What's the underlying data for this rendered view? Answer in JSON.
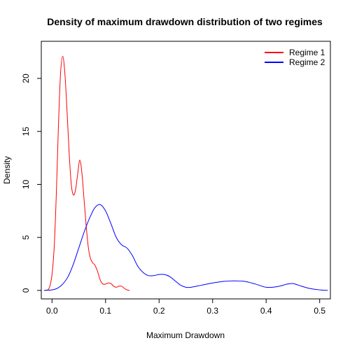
{
  "chart_data": {
    "type": "line",
    "title": "Density of maximum drawdown distribution of two regimes",
    "xlabel": "Maximum Drawdown",
    "ylabel": "Density",
    "xlim": [
      -0.02,
      0.52
    ],
    "ylim": [
      -0.8,
      23.5
    ],
    "xticks": [
      "0.0",
      "0.1",
      "0.2",
      "0.3",
      "0.4",
      "0.5"
    ],
    "xtick_values": [
      0,
      0.1,
      0.2,
      0.3,
      0.4,
      0.5
    ],
    "yticks": [
      "0",
      "5",
      "10",
      "15",
      "20"
    ],
    "ytick_values": [
      0,
      5,
      10,
      15,
      20
    ],
    "grid": false,
    "legend_position": "top-right",
    "series": [
      {
        "name": "Regime 1",
        "color": "#ff0000",
        "x": [
          -0.013,
          -0.008,
          -0.004,
          0.0,
          0.004,
          0.008,
          0.012,
          0.016,
          0.02,
          0.024,
          0.028,
          0.032,
          0.036,
          0.04,
          0.044,
          0.048,
          0.052,
          0.056,
          0.06,
          0.064,
          0.068,
          0.072,
          0.076,
          0.08,
          0.085,
          0.09,
          0.095,
          0.1,
          0.105,
          0.11,
          0.115,
          0.12,
          0.125,
          0.13,
          0.135,
          0.14,
          0.145
        ],
        "values": [
          0.0,
          0.05,
          0.4,
          1.5,
          4.0,
          9.0,
          15.5,
          20.5,
          22.1,
          20.5,
          17.0,
          13.0,
          10.0,
          9.0,
          9.5,
          11.0,
          12.3,
          11.0,
          8.5,
          6.0,
          4.0,
          3.0,
          2.6,
          2.4,
          1.8,
          1.0,
          0.6,
          0.6,
          0.7,
          0.65,
          0.4,
          0.3,
          0.4,
          0.4,
          0.2,
          0.05,
          0.0
        ]
      },
      {
        "name": "Regime 2",
        "color": "#0000ff",
        "x": [
          -0.015,
          0.0,
          0.01,
          0.02,
          0.03,
          0.04,
          0.05,
          0.06,
          0.07,
          0.08,
          0.09,
          0.1,
          0.11,
          0.12,
          0.13,
          0.14,
          0.15,
          0.16,
          0.17,
          0.18,
          0.19,
          0.2,
          0.21,
          0.22,
          0.23,
          0.24,
          0.25,
          0.26,
          0.28,
          0.3,
          0.32,
          0.34,
          0.36,
          0.38,
          0.4,
          0.42,
          0.44,
          0.45,
          0.46,
          0.48,
          0.5,
          0.515
        ],
        "values": [
          0.0,
          0.05,
          0.2,
          0.6,
          1.3,
          2.5,
          4.0,
          5.5,
          6.8,
          7.8,
          8.1,
          7.5,
          6.3,
          5.0,
          4.3,
          4.0,
          3.3,
          2.3,
          1.7,
          1.4,
          1.4,
          1.5,
          1.5,
          1.3,
          0.9,
          0.5,
          0.3,
          0.3,
          0.5,
          0.7,
          0.85,
          0.9,
          0.85,
          0.6,
          0.3,
          0.35,
          0.6,
          0.65,
          0.5,
          0.2,
          0.05,
          0.0
        ]
      }
    ]
  }
}
